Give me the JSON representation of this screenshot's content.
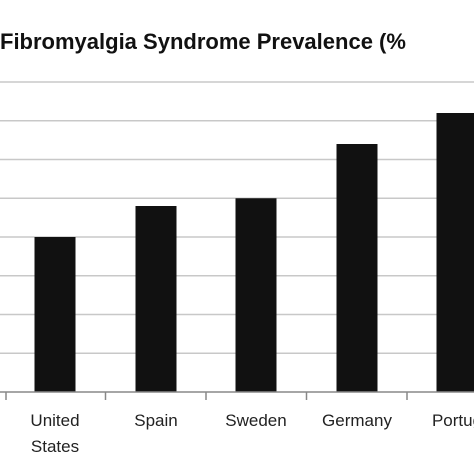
{
  "chart_data": {
    "type": "bar",
    "title": "Fibromyalgia Syndrome Prevalence (%",
    "categories": [
      [
        "United",
        "States"
      ],
      [
        "Spain"
      ],
      [
        "Sweden"
      ],
      [
        "Germany"
      ],
      [
        "Portug"
      ]
    ],
    "values": [
      2.0,
      2.4,
      2.5,
      3.2,
      3.6
    ],
    "ylim": [
      0,
      4.0
    ],
    "gridlines": true,
    "xlabel": "",
    "ylabel": "",
    "colors": {
      "bar": "#111111",
      "grid": "#c8c8c8",
      "axis": "#888888"
    }
  }
}
